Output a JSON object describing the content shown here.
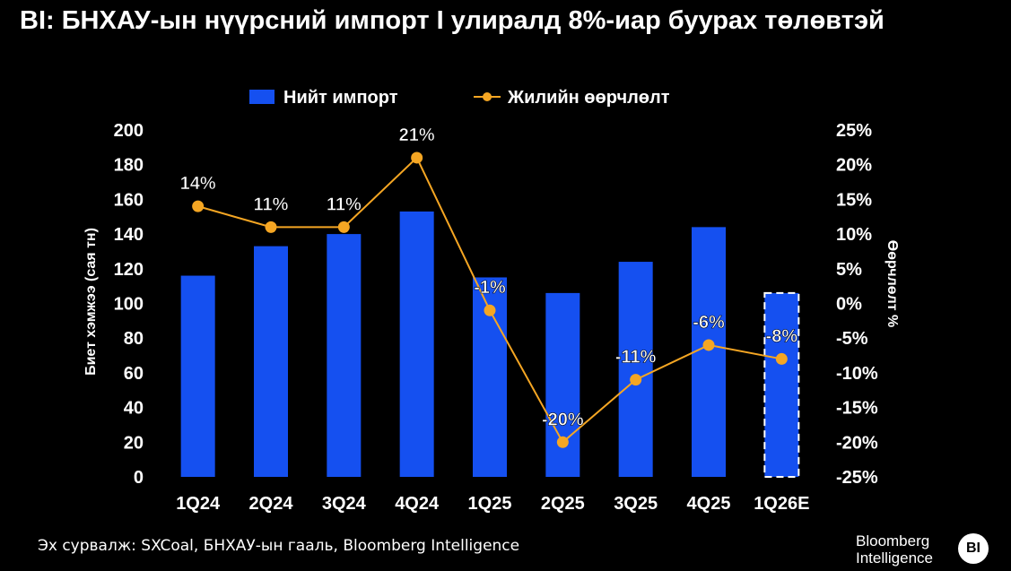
{
  "title": "BI: БНХАУ-ын нүүрсний импорт I улиралд 8%-иар буурах төлөвтэй",
  "source": "Эх сурвалж: SXCoal, БНХАУ-ын гааль, Bloomberg Intelligence",
  "logo": {
    "line1": "Bloomberg",
    "line2": "Intelligence",
    "badge": "BI"
  },
  "colors": {
    "bar": "#1550f0",
    "line": "#f5a623",
    "background": "#000000",
    "text": "#ffffff"
  },
  "chart_data": {
    "type": "bar",
    "categories": [
      "1Q24",
      "2Q24",
      "3Q24",
      "4Q24",
      "1Q25",
      "2Q25",
      "3Q25",
      "4Q25",
      "1Q26E"
    ],
    "legend_position": "top",
    "grid": false,
    "series": [
      {
        "name": "Нийт импорт",
        "type": "bar",
        "axis": "left",
        "values": [
          116,
          133,
          140,
          153,
          115,
          106,
          124,
          144,
          106
        ],
        "estimate_categories": [
          "1Q26E"
        ]
      },
      {
        "name": "Жилийн өөрчлөлт",
        "type": "line",
        "axis": "right",
        "values": [
          14,
          11,
          11,
          21,
          -1,
          -20,
          -11,
          -6,
          -8
        ],
        "labels": [
          "14%",
          "11%",
          "11%",
          "21%",
          "-1%",
          "-20%",
          "-11%",
          "-6%",
          "-8%"
        ]
      }
    ],
    "ylabel": "Биет хэмжээ (сая тн)",
    "ylim": [
      0,
      200
    ],
    "yticks": [
      0,
      20,
      40,
      60,
      80,
      100,
      120,
      140,
      160,
      180,
      200
    ],
    "y2label": "Өөрчлөлт %",
    "y2lim": [
      -25,
      25
    ],
    "y2ticks": [
      "25%",
      "20%",
      "15%",
      "10%",
      "5%",
      "0%",
      "-5%",
      "-10%",
      "-15%",
      "-20%",
      "-25%"
    ]
  }
}
